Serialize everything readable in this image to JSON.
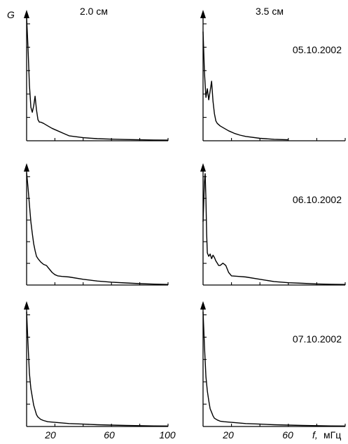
{
  "figure": {
    "y_axis_label": "G",
    "x_axis_label": "f,",
    "x_axis_unit": "мГц",
    "column_titles": [
      "2.0 см",
      "3.5 см"
    ],
    "x_tick_labels_left": [
      "20",
      "60",
      "100"
    ],
    "x_tick_labels_right": [
      "20",
      "60"
    ]
  },
  "chart_data": [
    {
      "type": "line",
      "row": 0,
      "col": 0,
      "column_title": "2.0 см",
      "date": "05.10.2002",
      "xlim": [
        0,
        100
      ],
      "ylim": [
        0,
        1
      ],
      "x": [
        0,
        1,
        2,
        3,
        4,
        5,
        6,
        7,
        8,
        9,
        10,
        12,
        15,
        18,
        22,
        26,
        30,
        40,
        50,
        60,
        70,
        80,
        90,
        100
      ],
      "y": [
        1.0,
        0.75,
        0.45,
        0.27,
        0.23,
        0.28,
        0.36,
        0.25,
        0.17,
        0.15,
        0.15,
        0.14,
        0.12,
        0.1,
        0.08,
        0.06,
        0.04,
        0.025,
        0.017,
        0.013,
        0.01,
        0.008,
        0.006,
        0.005
      ]
    },
    {
      "type": "line",
      "row": 0,
      "col": 1,
      "column_title": "3.5 см",
      "date": "05.10.2002",
      "xlim": [
        0,
        100
      ],
      "ylim": [
        0,
        1
      ],
      "x": [
        0,
        1,
        2,
        3,
        4,
        5,
        6,
        7,
        8,
        9,
        10,
        12,
        15,
        18,
        22,
        26,
        30,
        40,
        50,
        60
      ],
      "y": [
        0.88,
        0.55,
        0.35,
        0.42,
        0.33,
        0.4,
        0.48,
        0.32,
        0.22,
        0.16,
        0.14,
        0.12,
        0.1,
        0.08,
        0.06,
        0.045,
        0.035,
        0.02,
        0.012,
        0.008
      ]
    },
    {
      "type": "line",
      "row": 1,
      "col": 0,
      "column_title": "2.0 см",
      "date": "06.10.2002",
      "xlim": [
        0,
        100
      ],
      "ylim": [
        0,
        1
      ],
      "x": [
        0,
        1,
        2,
        3,
        4,
        5,
        6,
        7,
        8,
        10,
        12,
        14,
        16,
        18,
        20,
        22,
        25,
        30,
        40,
        50,
        60,
        70,
        80,
        90,
        100
      ],
      "y": [
        0.98,
        0.85,
        0.7,
        0.55,
        0.45,
        0.36,
        0.3,
        0.25,
        0.23,
        0.2,
        0.18,
        0.17,
        0.14,
        0.11,
        0.09,
        0.08,
        0.075,
        0.07,
        0.05,
        0.035,
        0.025,
        0.018,
        0.012,
        0.008,
        0.005
      ]
    },
    {
      "type": "line",
      "row": 1,
      "col": 1,
      "column_title": "3.5 см",
      "date": "06.10.2002",
      "xlim": [
        0,
        100
      ],
      "ylim": [
        0,
        1
      ],
      "x": [
        0,
        1,
        1.5,
        2,
        2.5,
        3,
        4,
        5,
        6,
        7,
        8,
        9,
        10,
        11,
        12,
        14,
        16,
        18,
        20,
        25,
        30,
        40,
        50,
        60,
        70,
        80,
        90,
        100
      ],
      "y": [
        0.55,
        0.9,
        0.97,
        0.75,
        0.45,
        0.28,
        0.25,
        0.27,
        0.23,
        0.26,
        0.24,
        0.21,
        0.19,
        0.17,
        0.17,
        0.19,
        0.17,
        0.11,
        0.08,
        0.075,
        0.07,
        0.05,
        0.03,
        0.02,
        0.015,
        0.01,
        0.007,
        0.005
      ]
    },
    {
      "type": "line",
      "row": 2,
      "col": 0,
      "column_title": "2.0 см",
      "date": "07.10.2002",
      "xlim": [
        0,
        100
      ],
      "ylim": [
        0,
        1
      ],
      "x": [
        0,
        1,
        2,
        3,
        4,
        5,
        6,
        7,
        8,
        10,
        12,
        15,
        20,
        25,
        30,
        40,
        50,
        60,
        70,
        80,
        90,
        100
      ],
      "y": [
        0.97,
        0.7,
        0.45,
        0.32,
        0.25,
        0.18,
        0.14,
        0.1,
        0.08,
        0.06,
        0.05,
        0.04,
        0.035,
        0.03,
        0.025,
        0.02,
        0.015,
        0.012,
        0.009,
        0.007,
        0.005,
        0.004
      ]
    },
    {
      "type": "line",
      "row": 2,
      "col": 1,
      "column_title": "3.5 см",
      "date": "07.10.2002",
      "xlim": [
        0,
        100
      ],
      "ylim": [
        0,
        1
      ],
      "x": [
        0,
        1,
        2,
        3,
        4,
        5,
        6,
        7,
        8,
        10,
        12,
        15,
        20,
        25,
        30,
        40,
        50,
        60,
        70,
        80,
        90,
        100
      ],
      "y": [
        0.97,
        0.68,
        0.42,
        0.3,
        0.22,
        0.15,
        0.12,
        0.09,
        0.07,
        0.055,
        0.045,
        0.04,
        0.035,
        0.03,
        0.025,
        0.02,
        0.015,
        0.012,
        0.009,
        0.007,
        0.005,
        0.004
      ]
    }
  ]
}
